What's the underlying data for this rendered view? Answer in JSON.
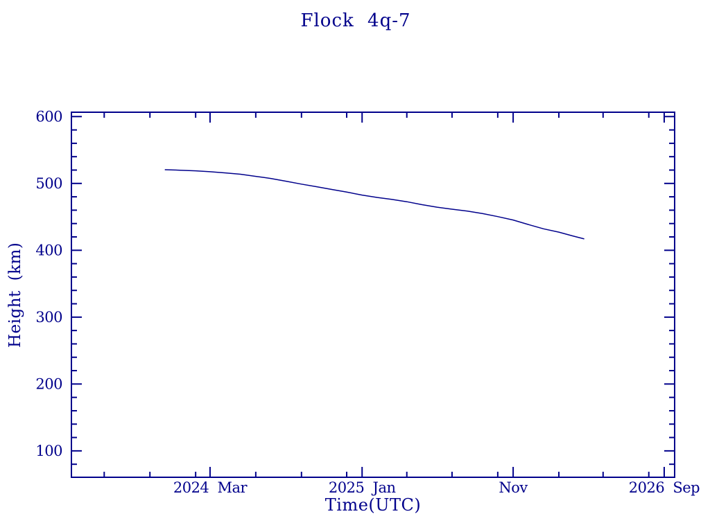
{
  "page": {
    "background": "#ffffff",
    "ink_color": "#00008B"
  },
  "chart_data": {
    "type": "line",
    "title": "Flock 4q-7",
    "xlabel": "Time(UTC)",
    "ylabel": "Height (km)",
    "grid": false,
    "legend": "none",
    "line_color": "#00008B",
    "x_domain": [
      "2023-05-27",
      "2026-09-22"
    ],
    "y_domain": [
      60.5,
      606.5
    ],
    "y_major_ticks": [
      100,
      200,
      300,
      400,
      500,
      600
    ],
    "y_minor_step": 20,
    "x_major_ticks": [
      {
        "date": "2024-03-01",
        "label": "2024 Mar"
      },
      {
        "date": "2025-01-01",
        "label": "2025 Jan"
      },
      {
        "date": "2025-11-01",
        "label": "Nov"
      },
      {
        "date": "2026-09-01",
        "label": "2026 Sep"
      }
    ],
    "x_minor_ticks": [
      "2023-08-01",
      "2023-11-01",
      "2024-02-01",
      "2024-06-01",
      "2024-09-01",
      "2024-12-01",
      "2025-04-01",
      "2025-07-01",
      "2025-10-01",
      "2026-02-01",
      "2026-05-01",
      "2026-08-01"
    ],
    "series": [
      {
        "name": "Flock 4q-7 orbital height",
        "points": [
          [
            "2023-12-01",
            520.5
          ],
          [
            "2024-01-01",
            519.8
          ],
          [
            "2024-02-01",
            518.8
          ],
          [
            "2024-03-01",
            517.5
          ],
          [
            "2024-04-01",
            515.7
          ],
          [
            "2024-05-01",
            513.8
          ],
          [
            "2024-06-01",
            510.6
          ],
          [
            "2024-07-01",
            507.5
          ],
          [
            "2024-08-01",
            503.3
          ],
          [
            "2024-09-01",
            499.0
          ],
          [
            "2024-10-01",
            495.1
          ],
          [
            "2024-11-01",
            491.0
          ],
          [
            "2024-12-01",
            487.0
          ],
          [
            "2025-01-01",
            482.6
          ],
          [
            "2025-02-01",
            479.0
          ],
          [
            "2025-03-01",
            476.2
          ],
          [
            "2025-04-01",
            472.6
          ],
          [
            "2025-05-01",
            468.3
          ],
          [
            "2025-06-01",
            464.5
          ],
          [
            "2025-07-01",
            461.5
          ],
          [
            "2025-08-01",
            458.5
          ],
          [
            "2025-09-01",
            454.8
          ],
          [
            "2025-10-01",
            450.4
          ],
          [
            "2025-11-01",
            445.3
          ],
          [
            "2025-12-01",
            438.7
          ],
          [
            "2026-01-01",
            432.1
          ],
          [
            "2026-02-01",
            427.2
          ],
          [
            "2026-03-01",
            421.5
          ],
          [
            "2026-03-24",
            417.0
          ]
        ]
      }
    ]
  }
}
